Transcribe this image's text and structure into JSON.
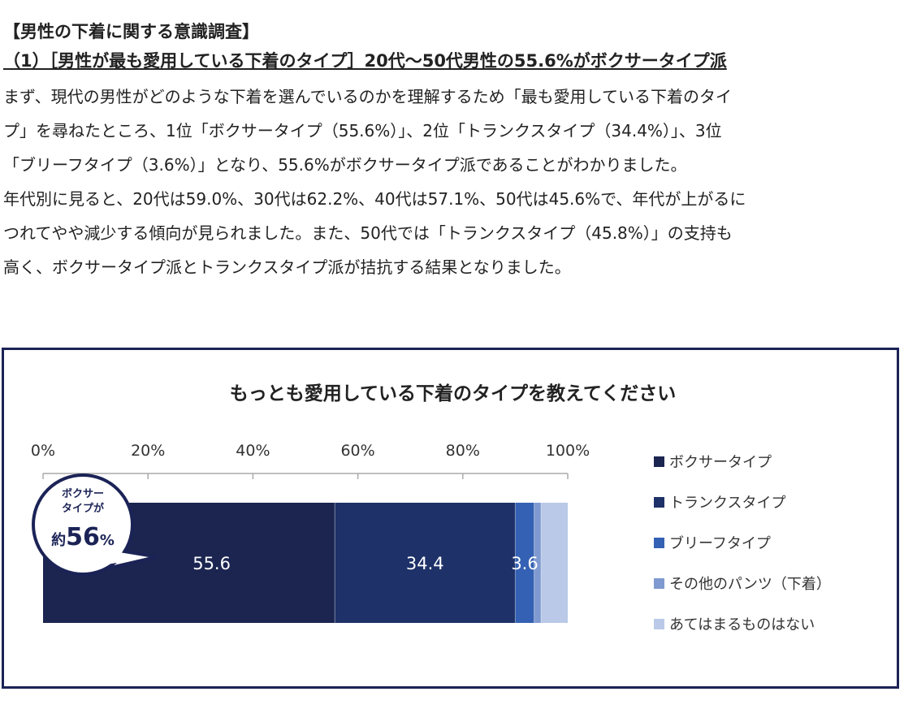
{
  "article": {
    "heading": "【男性の下着に関する意識調査】",
    "subheading": "（1）［男性が最も愛用している下着のタイプ］20代～50代男性の55.6%がボクサータイプ派",
    "paragraph_lines": [
      "まず、現代の男性がどのような下着を選んでいるのかを理解するため「最も愛用している下着のタイ",
      "プ」を尋ねたところ、1位「ボクサータイプ（55.6%）」、2位「トランクスタイプ（34.4%）」、3位",
      "「ブリーフタイプ（3.6%）」となり、55.6%がボクサータイプ派であることがわかりました。",
      "年代別に見ると、20代は59.0%、30代は62.2%、40代は57.1%、50代は45.6%で、年代が上がるに",
      "つれてやや減少する傾向が見られました。また、50代では「トランクスタイプ（45.8%）」の支持も",
      "高く、ボクサータイプ派とトランクスタイプ派が拮抗する結果となりました。"
    ]
  },
  "callout": {
    "line1": "ボクサー",
    "line2": "タイプが",
    "prefix": "約",
    "value": "56",
    "unit": "%"
  },
  "chart_data": {
    "type": "bar",
    "orientation": "horizontal-stacked",
    "title": "もっとも愛用している下着のタイプを教えてください",
    "xlim": [
      0,
      100
    ],
    "x_ticks": [
      "0%",
      "20%",
      "40%",
      "60%",
      "80%",
      "100%"
    ],
    "legend_position": "right",
    "series": [
      {
        "name": "ボクサータイプ",
        "value": 55.6,
        "label": "55.6",
        "color": "#1b2550"
      },
      {
        "name": "トランクスタイプ",
        "value": 34.4,
        "label": "34.4",
        "color": "#1e3168"
      },
      {
        "name": "ブリーフタイプ",
        "value": 3.6,
        "label": "3.6",
        "color": "#3461b3"
      },
      {
        "name": "その他のパンツ（下着）",
        "value": 1.3,
        "label": "",
        "color": "#7f9ad0"
      },
      {
        "name": "あてはまるものはない",
        "value": 5.1,
        "label": "",
        "color": "#b9c9e7"
      }
    ]
  }
}
